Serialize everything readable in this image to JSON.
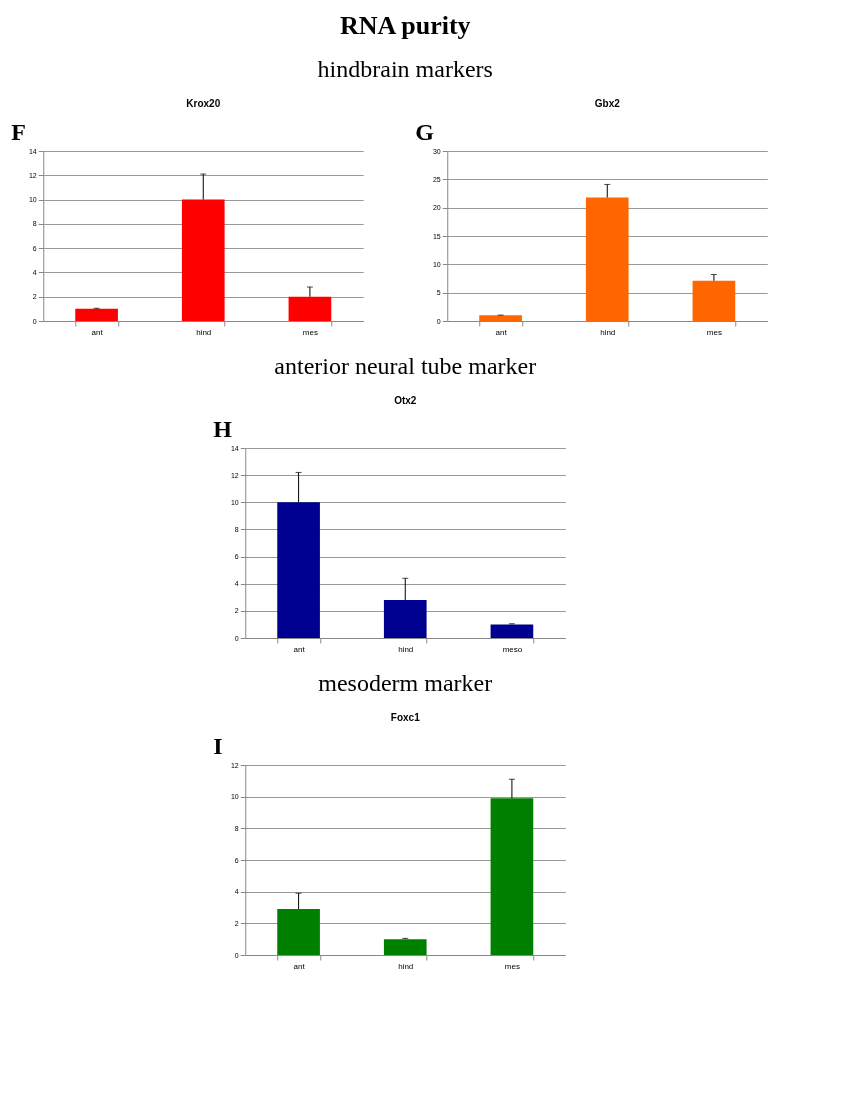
{
  "chart_data": [
    {
      "type": "bar",
      "title": "Krox20",
      "annotations": [
        "RNA purity",
        "hindbrain markers",
        "F"
      ],
      "categories": [
        "ant",
        "hind",
        "mes"
      ],
      "values": [
        1,
        10,
        2
      ],
      "errors": [
        [
          1,
          1.05
        ],
        [
          10,
          12.1
        ],
        [
          2,
          2.8
        ]
      ],
      "color": "#ff0000",
      "ylim": [
        0,
        14
      ],
      "yticks": [
        0,
        2,
        4,
        6,
        8,
        10,
        12,
        14
      ],
      "grid": "y"
    },
    {
      "type": "bar",
      "title": "Gbx2",
      "annotations": [
        "G"
      ],
      "categories": [
        "ant",
        "hind",
        "mes"
      ],
      "values": [
        1,
        21.8,
        7.1
      ],
      "errors": [
        [
          1,
          1.05
        ],
        [
          21.8,
          24.1
        ],
        [
          7.1,
          8.2
        ]
      ],
      "color": "#ff6600",
      "ylim": [
        0,
        30
      ],
      "yticks": [
        0,
        5,
        10,
        15,
        20,
        25,
        30
      ],
      "grid": "y"
    },
    {
      "type": "bar",
      "title": "Otx2",
      "annotations": [
        "anterior neural tube marker",
        "H"
      ],
      "categories": [
        "ant",
        "hind",
        "meso"
      ],
      "values": [
        10,
        2.8,
        1
      ],
      "errors": [
        [
          10,
          12.2
        ],
        [
          2.8,
          4.4
        ],
        [
          1,
          1.05
        ]
      ],
      "color": "#000090",
      "ylim": [
        0,
        14
      ],
      "yticks": [
        0,
        2,
        4,
        6,
        8,
        10,
        12,
        14
      ],
      "grid": "y"
    },
    {
      "type": "bar",
      "title": "Foxc1",
      "annotations": [
        "mesoderm marker",
        "I"
      ],
      "categories": [
        "ant",
        "hind",
        "mes"
      ],
      "values": [
        2.9,
        1,
        9.9
      ],
      "errors": [
        [
          2.9,
          3.9
        ],
        [
          1,
          1.05
        ],
        [
          9.9,
          11.1
        ]
      ],
      "color": "#008000",
      "ylim": [
        0,
        12
      ],
      "yticks": [
        0,
        2,
        4,
        6,
        8,
        10,
        12
      ],
      "grid": "y"
    }
  ]
}
